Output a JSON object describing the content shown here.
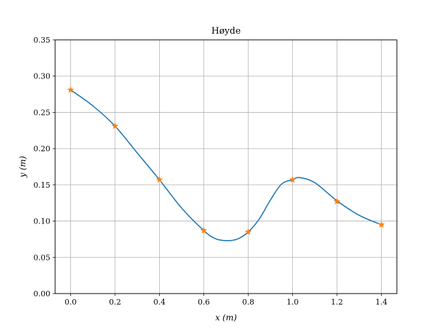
{
  "chart_data": {
    "type": "line",
    "title": "Høyde",
    "xlabel": "x (m)",
    "ylabel": "y (m)",
    "xlim": [
      -0.07,
      1.47
    ],
    "ylim": [
      0.0,
      0.35
    ],
    "x_ticks": [
      0.0,
      0.2,
      0.4,
      0.6,
      0.8,
      1.0,
      1.2,
      1.4
    ],
    "x_tick_labels": [
      "0.0",
      "0.2",
      "0.4",
      "0.6",
      "0.8",
      "1.0",
      "1.2",
      "1.4"
    ],
    "y_ticks": [
      0.0,
      0.05,
      0.1,
      0.15,
      0.2,
      0.25,
      0.3,
      0.35
    ],
    "y_tick_labels": [
      "0.00",
      "0.05",
      "0.10",
      "0.15",
      "0.20",
      "0.25",
      "0.30",
      "0.35"
    ],
    "grid": true,
    "series": [
      {
        "kind": "line",
        "color": "#1f77b4",
        "x": [
          0.0,
          0.1,
          0.2,
          0.3,
          0.4,
          0.5,
          0.6,
          0.65,
          0.7,
          0.75,
          0.8,
          0.85,
          0.9,
          0.95,
          1.0,
          1.03,
          1.1,
          1.2,
          1.3,
          1.4
        ],
        "y": [
          0.281,
          0.259,
          0.231,
          0.194,
          0.157,
          0.118,
          0.087,
          0.076,
          0.073,
          0.075,
          0.085,
          0.103,
          0.129,
          0.151,
          0.157,
          0.16,
          0.153,
          0.128,
          0.108,
          0.095
        ]
      },
      {
        "kind": "markers",
        "marker": "star",
        "color": "#ff7f0e",
        "x": [
          0.0,
          0.2,
          0.4,
          0.6,
          0.8,
          1.0,
          1.2,
          1.4
        ],
        "y": [
          0.281,
          0.231,
          0.157,
          0.087,
          0.085,
          0.157,
          0.127,
          0.095
        ]
      }
    ]
  }
}
